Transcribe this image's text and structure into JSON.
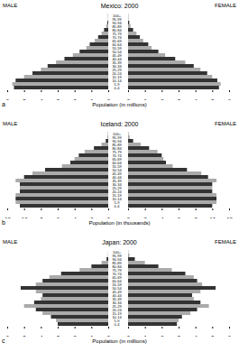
{
  "chart_data": [
    {
      "type": "bar",
      "orientation": "horizontal",
      "title": "Mexico: 2000",
      "panel": "a",
      "xlabel": "Population (in millions)",
      "categories": [
        "0-4",
        "5-9",
        "10-14",
        "15-19",
        "20-24",
        "25-29",
        "30-34",
        "35-39",
        "40-44",
        "45-49",
        "50-54",
        "55-59",
        "60-64",
        "65-69",
        "70-74",
        "75-79",
        "80-84",
        "85-89",
        "90-94",
        "95-99",
        "100+"
      ],
      "xlim": [
        0,
        6
      ],
      "xticks": [
        0,
        1,
        2,
        3,
        4,
        5,
        6
      ],
      "series": [
        {
          "name": "MALE",
          "colors": [
            "#333333",
            "#aaaaaa",
            "#333333",
            "#aaaaaa",
            "#333333",
            "#aaaaaa",
            "#333333",
            "#aaaaaa",
            "#333333",
            "#aaaaaa",
            "#333333",
            "#aaaaaa",
            "#333333",
            "#aaaaaa",
            "#333333",
            "#aaaaaa",
            "#333333",
            "#aaaaaa",
            "#333333",
            "#aaaaaa",
            "#333333"
          ],
          "values": [
            5.6,
            5.7,
            5.5,
            5.0,
            4.5,
            4.0,
            3.6,
            3.1,
            2.6,
            2.1,
            1.7,
            1.3,
            1.1,
            0.8,
            0.6,
            0.4,
            0.25,
            0.12,
            0.05,
            0.02,
            0.01
          ]
        },
        {
          "name": "FEMALE",
          "colors": [
            "#333333",
            "#aaaaaa",
            "#333333",
            "#aaaaaa",
            "#333333",
            "#aaaaaa",
            "#333333",
            "#aaaaaa",
            "#333333",
            "#aaaaaa",
            "#333333",
            "#aaaaaa",
            "#333333",
            "#aaaaaa",
            "#333333",
            "#aaaaaa",
            "#333333",
            "#aaaaaa",
            "#333333",
            "#aaaaaa",
            "#333333"
          ],
          "values": [
            5.4,
            5.5,
            5.3,
            5.0,
            4.7,
            4.3,
            3.9,
            3.4,
            2.8,
            2.2,
            1.8,
            1.4,
            1.2,
            0.9,
            0.7,
            0.5,
            0.3,
            0.15,
            0.07,
            0.03,
            0.01
          ]
        }
      ]
    },
    {
      "type": "bar",
      "orientation": "horizontal",
      "title": "Iceland: 2000",
      "panel": "b",
      "xlabel": "Population (in thousands)",
      "categories": [
        "0-4",
        "5-9",
        "10-14",
        "15-19",
        "20-24",
        "25-29",
        "30-34",
        "35-39",
        "40-44",
        "45-49",
        "50-54",
        "55-59",
        "60-64",
        "65-69",
        "70-74",
        "75-79",
        "80-84",
        "85-89",
        "90-94",
        "95-99",
        "100+"
      ],
      "xlim": [
        0,
        12
      ],
      "xticks": [
        0,
        2,
        4,
        6,
        8,
        10,
        12
      ],
      "series": [
        {
          "name": "MALE",
          "colors": [
            "#333333",
            "#aaaaaa",
            "#333333",
            "#aaaaaa",
            "#333333",
            "#aaaaaa",
            "#333333",
            "#aaaaaa",
            "#333333",
            "#aaaaaa",
            "#333333",
            "#aaaaaa",
            "#333333",
            "#aaaaaa",
            "#333333",
            "#aaaaaa",
            "#333333",
            "#aaaaaa",
            "#333333",
            "#aaaaaa",
            "#333333"
          ],
          "values": [
            10.5,
            11,
            11,
            11,
            10.5,
            10.5,
            10.5,
            11,
            10,
            9,
            7.5,
            5.5,
            4.5,
            4,
            3.5,
            2.8,
            1.7,
            0.8,
            0.3,
            0.1,
            0.02
          ]
        },
        {
          "name": "FEMALE",
          "colors": [
            "#333333",
            "#aaaaaa",
            "#333333",
            "#aaaaaa",
            "#333333",
            "#aaaaaa",
            "#333333",
            "#aaaaaa",
            "#333333",
            "#aaaaaa",
            "#333333",
            "#aaaaaa",
            "#333333",
            "#aaaaaa",
            "#333333",
            "#aaaaaa",
            "#333333",
            "#aaaaaa",
            "#333333",
            "#aaaaaa",
            "#333333"
          ],
          "values": [
            10,
            10.5,
            10.5,
            10.5,
            10,
            10,
            10,
            10.5,
            9.5,
            8.7,
            7,
            5.3,
            4.5,
            4.2,
            4,
            3.5,
            2.5,
            1.5,
            0.6,
            0.2,
            0.03
          ]
        }
      ]
    },
    {
      "type": "bar",
      "orientation": "horizontal",
      "title": "Japan: 2000",
      "panel": "c",
      "xlabel": "Population (in millions)",
      "categories": [
        "0-4",
        "5-9",
        "10-14",
        "15-19",
        "20-24",
        "25-29",
        "30-34",
        "35-39",
        "40-44",
        "45-49",
        "50-54",
        "55-59",
        "60-64",
        "65-69",
        "70-74",
        "75-79",
        "80-84",
        "85-89",
        "90-94",
        "95-99",
        "100+"
      ],
      "xlim": [
        0,
        6
      ],
      "xticks": [
        0,
        1,
        2,
        3,
        4,
        5,
        6
      ],
      "series": [
        {
          "name": "MALE",
          "colors": [
            "#333333",
            "#aaaaaa",
            "#333333",
            "#aaaaaa",
            "#333333",
            "#aaaaaa",
            "#333333",
            "#aaaaaa",
            "#333333",
            "#aaaaaa",
            "#333333",
            "#aaaaaa",
            "#333333",
            "#aaaaaa",
            "#333333",
            "#aaaaaa",
            "#333333",
            "#aaaaaa",
            "#333333",
            "#aaaaaa",
            "#333333"
          ],
          "values": [
            3.0,
            3.1,
            3.4,
            3.9,
            4.3,
            5.0,
            4.4,
            4.0,
            3.9,
            4.3,
            5.2,
            4.3,
            3.9,
            3.5,
            2.8,
            1.7,
            1.0,
            0.4,
            0.1,
            0.02,
            0.003
          ]
        },
        {
          "name": "FEMALE",
          "colors": [
            "#333333",
            "#aaaaaa",
            "#333333",
            "#aaaaaa",
            "#333333",
            "#aaaaaa",
            "#333333",
            "#aaaaaa",
            "#333333",
            "#aaaaaa",
            "#333333",
            "#aaaaaa",
            "#333333",
            "#aaaaaa",
            "#333333",
            "#aaaaaa",
            "#333333",
            "#aaaaaa",
            "#333333",
            "#aaaaaa",
            "#333333"
          ],
          "values": [
            2.9,
            3.0,
            3.2,
            3.7,
            4.1,
            4.8,
            4.3,
            3.9,
            3.8,
            4.3,
            5.2,
            4.4,
            4.1,
            3.9,
            3.4,
            2.6,
            1.8,
            1.0,
            0.4,
            0.08,
            0.01
          ]
        }
      ]
    }
  ]
}
